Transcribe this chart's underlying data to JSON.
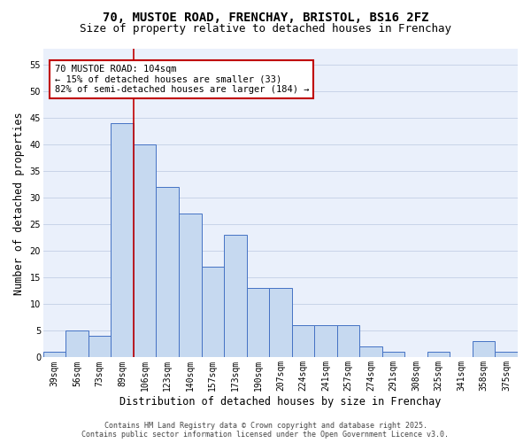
{
  "title_line1": "70, MUSTOE ROAD, FRENCHAY, BRISTOL, BS16 2FZ",
  "title_line2": "Size of property relative to detached houses in Frenchay",
  "xlabel": "Distribution of detached houses by size in Frenchay",
  "ylabel": "Number of detached properties",
  "categories": [
    "39sqm",
    "56sqm",
    "73sqm",
    "89sqm",
    "106sqm",
    "123sqm",
    "140sqm",
    "157sqm",
    "173sqm",
    "190sqm",
    "207sqm",
    "224sqm",
    "241sqm",
    "257sqm",
    "274sqm",
    "291sqm",
    "308sqm",
    "325sqm",
    "341sqm",
    "358sqm",
    "375sqm"
  ],
  "values": [
    1,
    5,
    4,
    44,
    40,
    32,
    27,
    17,
    23,
    13,
    13,
    6,
    6,
    6,
    2,
    1,
    0,
    1,
    0,
    3,
    1
  ],
  "bar_color": "#c6d9f0",
  "bar_edge_color": "#4472c4",
  "vline_x_index": 3.5,
  "vline_color": "#c00000",
  "annotation_text": "70 MUSTOE ROAD: 104sqm\n← 15% of detached houses are smaller (33)\n82% of semi-detached houses are larger (184) →",
  "annotation_box_color": "white",
  "annotation_box_edge_color": "#c00000",
  "ylim": [
    0,
    58
  ],
  "yticks": [
    0,
    5,
    10,
    15,
    20,
    25,
    30,
    35,
    40,
    45,
    50,
    55
  ],
  "grid_color": "#c8d4e8",
  "bg_color": "#eaf0fb",
  "footer_text": "Contains HM Land Registry data © Crown copyright and database right 2025.\nContains public sector information licensed under the Open Government Licence v3.0.",
  "title_fontsize": 10,
  "subtitle_fontsize": 9,
  "tick_fontsize": 7,
  "label_fontsize": 8.5,
  "annotation_fontsize": 7.5,
  "footer_fontsize": 6
}
